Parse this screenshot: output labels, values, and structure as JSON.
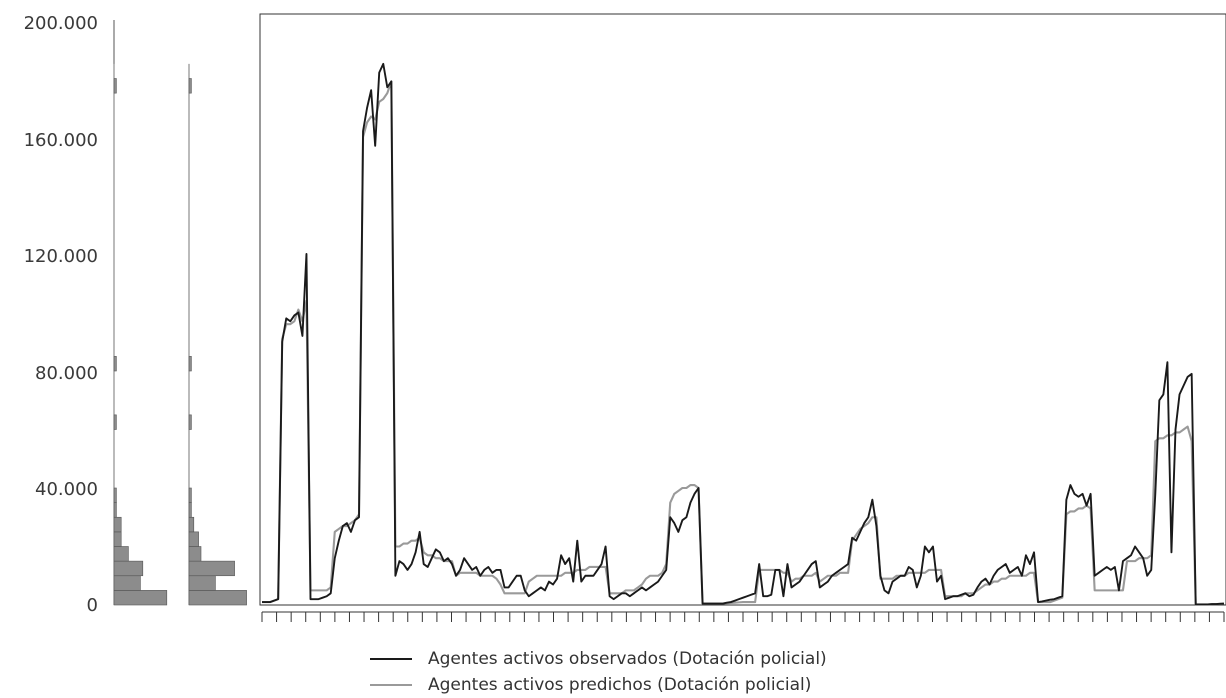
{
  "chart_data": {
    "type": "line",
    "yticks": [
      "200.000",
      "160.000",
      "120.000",
      "80.000",
      "40.000",
      "0"
    ],
    "ylim": [
      0,
      200000
    ],
    "x_tick_count": 67,
    "grid": false,
    "legend_position": "bottom",
    "colors": {
      "observed": "#1a1a1a",
      "predicted": "#9a9a9a",
      "hist": "#8c8c8c"
    },
    "series": [
      {
        "key": "observed",
        "name": "Agentes activos observados (Dotación policial)",
        "values": [
          1000,
          1000,
          1000,
          1500,
          2000,
          90000,
          98000,
          97000,
          99000,
          100000,
          92000,
          120000,
          2000,
          2000,
          2000,
          2500,
          3000,
          4000,
          16000,
          22000,
          27000,
          28000,
          25000,
          29000,
          30000,
          162000,
          170000,
          176000,
          157000,
          182000,
          185000,
          177000,
          179000,
          10000,
          15000,
          14000,
          12000,
          14000,
          18000,
          25000,
          14000,
          13000,
          16000,
          19000,
          18000,
          15000,
          16000,
          14000,
          10000,
          12000,
          16000,
          14000,
          12000,
          13000,
          10000,
          12000,
          13000,
          11000,
          12000,
          12000,
          6000,
          6000,
          8000,
          10000,
          10000,
          5000,
          3000,
          4000,
          5000,
          6000,
          5000,
          8000,
          7000,
          9000,
          17000,
          14000,
          16000,
          8000,
          22000,
          8000,
          10000,
          10000,
          10000,
          12000,
          14000,
          20000,
          3000,
          2000,
          3000,
          4000,
          4000,
          3000,
          4000,
          5000,
          6000,
          5000,
          6000,
          7000,
          8000,
          10000,
          12000,
          30000,
          28000,
          25000,
          29000,
          30000,
          35000,
          38000,
          40000,
          500,
          500,
          500,
          500,
          500,
          500,
          800,
          1000,
          1500,
          2000,
          2500,
          3000,
          3500,
          4000,
          14000,
          3000,
          3000,
          3500,
          12000,
          12000,
          3000,
          14000,
          6000,
          7000,
          8000,
          10000,
          12000,
          14000,
          15000,
          6000,
          7000,
          8000,
          10000,
          11000,
          12000,
          13000,
          14000,
          23000,
          22000,
          25000,
          28000,
          30000,
          36000,
          27000,
          10000,
          5000,
          4000,
          8000,
          9000,
          10000,
          10000,
          13000,
          12000,
          6000,
          10000,
          20000,
          18000,
          20000,
          8000,
          10000,
          2000,
          2500,
          3000,
          3000,
          3500,
          4000,
          3000,
          3500,
          6000,
          8000,
          9000,
          7000,
          10000,
          12000,
          13000,
          14000,
          11000,
          12000,
          13000,
          10000,
          17000,
          14000,
          18000,
          1000,
          1200,
          1500,
          1800,
          2000,
          2500,
          3000,
          36000,
          41000,
          38000,
          37000,
          38000,
          34000,
          38000,
          10000,
          11000,
          12000,
          13000,
          12000,
          13000,
          5000,
          15000,
          16000,
          17000,
          20000,
          18000,
          16000,
          10000,
          12000,
          38000,
          70000,
          72000,
          83000,
          18000,
          60000,
          72000,
          75000,
          78000,
          79000,
          200,
          200,
          200,
          200,
          300,
          300,
          400,
          500
        ]
      },
      {
        "key": "predicted",
        "name": "Agentes activos predichos (Dotación policial)",
        "values": [
          1000,
          1000,
          1000,
          1500,
          2000,
          91000,
          96000,
          96000,
          97000,
          101000,
          97000,
          104000,
          5000,
          5000,
          5000,
          5000,
          5000,
          6000,
          25000,
          26000,
          27000,
          27000,
          28000,
          29000,
          31000,
          160000,
          165000,
          167000,
          166000,
          172000,
          173000,
          175000,
          179000,
          20000,
          20000,
          21000,
          21000,
          22000,
          22000,
          23000,
          18000,
          17000,
          17000,
          16000,
          16000,
          15000,
          15000,
          15000,
          10000,
          11000,
          11000,
          11000,
          11000,
          11000,
          10000,
          10000,
          10000,
          10000,
          9000,
          7000,
          4000,
          4000,
          4000,
          4000,
          4000,
          4000,
          8000,
          9000,
          10000,
          10000,
          10000,
          10000,
          10000,
          10000,
          10000,
          11000,
          11000,
          11000,
          12000,
          12000,
          12000,
          13000,
          13000,
          13000,
          13000,
          13000,
          4000,
          4000,
          4000,
          4000,
          5000,
          5000,
          5000,
          6000,
          7000,
          9000,
          10000,
          10000,
          10000,
          11000,
          14000,
          35000,
          38000,
          39000,
          40000,
          40000,
          41000,
          41000,
          40000,
          500,
          500,
          500,
          500,
          500,
          500,
          600,
          700,
          800,
          900,
          1000,
          1000,
          1000,
          1000,
          12000,
          12000,
          12000,
          12000,
          12000,
          12000,
          11000,
          11000,
          8000,
          9000,
          9000,
          10000,
          10000,
          10000,
          11000,
          8000,
          9000,
          10000,
          10000,
          10000,
          11000,
          11000,
          11000,
          22000,
          24000,
          26000,
          27000,
          28000,
          30000,
          30000,
          9000,
          9000,
          9000,
          9000,
          10000,
          10000,
          10000,
          11000,
          11000,
          11000,
          11000,
          11000,
          12000,
          12000,
          12000,
          12000,
          3000,
          3000,
          3000,
          3000,
          3000,
          4000,
          4000,
          4000,
          5000,
          6000,
          7000,
          7000,
          8000,
          8000,
          9000,
          9000,
          10000,
          10000,
          10000,
          10000,
          10000,
          11000,
          11000,
          1000,
          1000,
          1000,
          1000,
          1500,
          2000,
          2500,
          31000,
          32000,
          32000,
          33000,
          33000,
          34000,
          33000,
          5000,
          5000,
          5000,
          5000,
          5000,
          5000,
          5000,
          5000,
          15000,
          15000,
          15000,
          16000,
          16000,
          16000,
          17000,
          56000,
          57000,
          57000,
          58000,
          58000,
          59000,
          59000,
          60000,
          61000,
          56000,
          200,
          200,
          200,
          200,
          300,
          300,
          400,
          500
        ]
      }
    ],
    "histograms": [
      {
        "key": "observed",
        "bin_width": 5000,
        "counts": [
          22,
          11,
          12,
          6,
          3,
          3,
          1,
          1,
          0,
          0,
          0,
          0,
          1,
          0,
          0,
          0,
          1,
          0,
          0,
          0,
          0,
          0,
          0,
          0,
          0,
          0,
          0,
          0,
          0,
          0,
          0,
          0,
          0,
          0,
          0,
          1,
          0,
          0,
          0,
          0,
          0,
          0,
          0,
          1,
          0,
          0,
          0,
          0,
          0,
          0,
          0,
          0,
          0,
          0,
          0,
          0,
          0,
          0,
          0,
          0,
          0,
          0,
          0,
          0,
          0,
          0,
          0,
          0,
          0,
          0,
          0,
          0,
          0,
          0,
          0,
          0,
          1,
          0,
          0,
          0,
          0,
          0,
          0,
          0,
          0,
          0,
          0,
          0,
          0,
          0,
          0,
          0,
          0,
          0,
          0,
          0,
          0,
          1,
          1,
          0
        ]
      },
      {
        "key": "predicted",
        "bin_width": 5000,
        "counts": [
          24,
          11,
          19,
          5,
          4,
          2,
          1,
          1,
          0,
          0,
          0,
          0,
          1,
          0,
          0,
          0,
          1,
          0,
          0,
          0,
          0,
          0,
          0,
          0,
          0,
          0,
          0,
          0,
          0,
          0,
          0,
          0,
          0,
          0,
          0,
          1,
          0,
          0,
          0,
          0,
          0,
          0,
          0,
          1,
          0,
          0,
          0,
          0,
          0,
          0,
          0,
          0,
          0,
          0,
          0,
          0,
          0,
          0,
          0,
          0,
          0,
          0,
          0,
          0,
          0,
          0,
          0,
          0,
          0,
          0,
          0,
          0,
          0,
          0,
          0,
          0,
          1,
          0,
          0,
          0,
          0,
          0,
          0,
          0,
          0,
          0,
          0,
          0,
          0,
          0,
          0,
          0,
          0,
          0,
          0,
          0,
          0,
          0,
          1,
          0
        ]
      }
    ]
  }
}
